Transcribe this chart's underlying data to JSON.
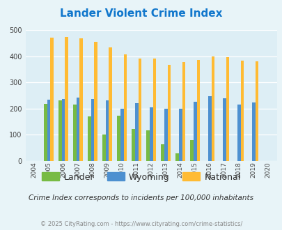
{
  "title": "Lander Violent Crime Index",
  "years": [
    2004,
    2005,
    2006,
    2007,
    2008,
    2009,
    2010,
    2011,
    2012,
    2013,
    2014,
    2015,
    2016,
    2017,
    2018,
    2019,
    2020
  ],
  "lander": [
    null,
    218,
    230,
    215,
    170,
    100,
    172,
    122,
    118,
    65,
    30,
    80,
    null,
    null,
    null,
    null,
    null
  ],
  "wyoming": [
    null,
    234,
    237,
    241,
    236,
    232,
    200,
    220,
    206,
    200,
    200,
    225,
    248,
    240,
    215,
    222,
    null
  ],
  "national": [
    null,
    470,
    473,
    467,
    455,
    432,
    407,
    390,
    390,
    368,
    378,
    385,
    398,
    395,
    382,
    380,
    null
  ],
  "lander_color": "#77bb44",
  "wyoming_color": "#4d90d0",
  "national_color": "#ffbb33",
  "bg_color": "#e8f4f8",
  "plot_bg": "#ddeef5",
  "title_color": "#1177cc",
  "subtitle": "Crime Index corresponds to incidents per 100,000 inhabitants",
  "footnote": "© 2025 CityRating.com - https://www.cityrating.com/crime-statistics/",
  "ylim": [
    0,
    500
  ],
  "yticks": [
    0,
    100,
    200,
    300,
    400,
    500
  ],
  "bar_width": 0.22
}
